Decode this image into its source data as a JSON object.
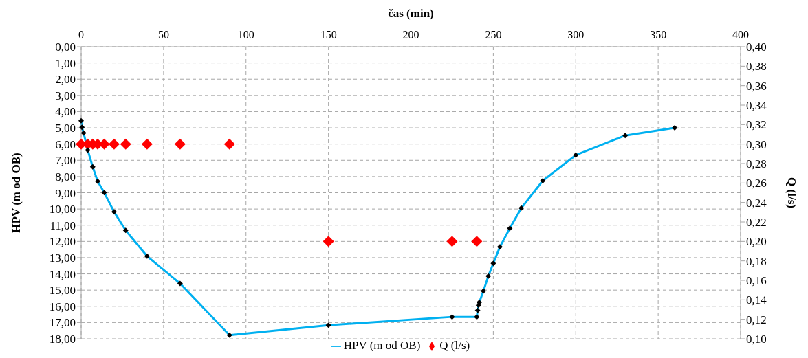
{
  "chart_data": {
    "type": "line",
    "xlabel": "čas (min)",
    "ylabel": "HPV (m  od OB)",
    "y2label": "Q (l/s)",
    "xlim": [
      0,
      400
    ],
    "xticks": [
      0,
      50,
      100,
      150,
      200,
      250,
      300,
      350,
      400
    ],
    "ylim": [
      18,
      0
    ],
    "yticks": [
      {
        "value": 0,
        "label": "0,00"
      },
      {
        "value": 1,
        "label": "1,00"
      },
      {
        "value": 2,
        "label": "2,00"
      },
      {
        "value": 3,
        "label": "3,00"
      },
      {
        "value": 4,
        "label": "4,00"
      },
      {
        "value": 5,
        "label": "5,00"
      },
      {
        "value": 6,
        "label": "6,00"
      },
      {
        "value": 7,
        "label": "7,00"
      },
      {
        "value": 8,
        "label": "8,00"
      },
      {
        "value": 9,
        "label": "9,00"
      },
      {
        "value": 10,
        "label": "10,00"
      },
      {
        "value": 11,
        "label": "11,00"
      },
      {
        "value": 12,
        "label": "12,00"
      },
      {
        "value": 13,
        "label": "13,00"
      },
      {
        "value": 14,
        "label": "14,00"
      },
      {
        "value": 15,
        "label": "15,00"
      },
      {
        "value": 16,
        "label": "16,00"
      },
      {
        "value": 17,
        "label": "17,00"
      },
      {
        "value": 18,
        "label": "18,00"
      }
    ],
    "y2lim": [
      0.1,
      0.4
    ],
    "y2ticks": [
      {
        "value": 0.1,
        "label": "0,10"
      },
      {
        "value": 0.12,
        "label": "0,12"
      },
      {
        "value": 0.14,
        "label": "0,14"
      },
      {
        "value": 0.16,
        "label": "0,16"
      },
      {
        "value": 0.18,
        "label": "0,18"
      },
      {
        "value": 0.2,
        "label": "0,20"
      },
      {
        "value": 0.22,
        "label": "0,22"
      },
      {
        "value": 0.24,
        "label": "0,24"
      },
      {
        "value": 0.26,
        "label": "0,26"
      },
      {
        "value": 0.28,
        "label": "0,28"
      },
      {
        "value": 0.3,
        "label": "0,30"
      },
      {
        "value": 0.32,
        "label": "0,32"
      },
      {
        "value": 0.34,
        "label": "0,34"
      },
      {
        "value": 0.36,
        "label": "0,36"
      },
      {
        "value": 0.38,
        "label": "0,38"
      },
      {
        "value": 0.4,
        "label": "0,40"
      }
    ],
    "grid": true,
    "legend": "bottom",
    "marker": "diamond",
    "line_style": "solid",
    "series": [
      {
        "name": "HPV (m od OB)",
        "color": "#00b0f0",
        "x": [
          0,
          0.5,
          1.5,
          4,
          7,
          10,
          14,
          20,
          27,
          40,
          60,
          90,
          150,
          225,
          240,
          240.5,
          241,
          241.5,
          244,
          247,
          250,
          254,
          260,
          267,
          280,
          300,
          330,
          360
        ],
        "values": [
          4.56,
          4.97,
          5.32,
          6.37,
          7.4,
          8.29,
          8.99,
          10.18,
          11.32,
          12.91,
          14.59,
          17.78,
          17.16,
          16.65,
          16.65,
          16.25,
          15.93,
          15.76,
          15.06,
          14.13,
          13.35,
          12.34,
          11.19,
          9.94,
          8.26,
          6.68,
          5.47,
          5.0
        ]
      },
      {
        "name": "Q (l/s)",
        "type": "scatter",
        "axis": "y2",
        "color": "#ff0000",
        "x": [
          0,
          4,
          7,
          10,
          14,
          20,
          27,
          40,
          60,
          90,
          150,
          225,
          240
        ],
        "values": [
          0.3,
          0.3,
          0.3,
          0.3,
          0.3,
          0.3,
          0.3,
          0.3,
          0.3,
          0.3,
          0.2,
          0.2,
          0.2
        ]
      }
    ]
  }
}
